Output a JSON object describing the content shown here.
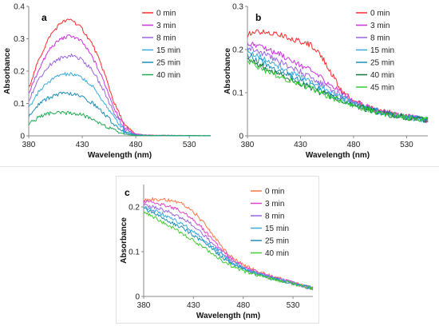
{
  "chart_data": [
    {
      "type": "line",
      "panel_label": "a",
      "xlabel": "Wavelength (nm)",
      "ylabel": "Absorbance",
      "xlim": [
        380,
        550
      ],
      "ylim": [
        0,
        0.4
      ],
      "xticks": [
        380,
        430,
        480,
        530
      ],
      "yticks": [
        0,
        0.1,
        0.2,
        0.3,
        0.4
      ],
      "yticklabels": [
        "0",
        "0.1",
        "0.2",
        "0.3",
        "0.4"
      ],
      "grid": false,
      "legend_position": "top-right",
      "series": [
        {
          "name": "0 min",
          "color": "#ff2a2a",
          "x": [
            380,
            390,
            400,
            410,
            420,
            430,
            440,
            450,
            460,
            470,
            480,
            490,
            500,
            550
          ],
          "y": [
            0.15,
            0.24,
            0.31,
            0.35,
            0.36,
            0.33,
            0.28,
            0.2,
            0.1,
            0.03,
            0.005,
            0.002,
            0.001,
            0
          ]
        },
        {
          "name": "3 min",
          "color": "#cc33dd",
          "x": [
            380,
            390,
            400,
            410,
            420,
            430,
            440,
            450,
            460,
            470,
            480,
            490,
            500,
            550
          ],
          "y": [
            0.13,
            0.21,
            0.27,
            0.3,
            0.31,
            0.29,
            0.24,
            0.17,
            0.085,
            0.025,
            0.005,
            0.002,
            0.001,
            0
          ]
        },
        {
          "name": "8 min",
          "color": "#9966dd",
          "x": [
            380,
            390,
            400,
            410,
            420,
            430,
            440,
            450,
            460,
            470,
            480,
            490,
            500,
            550
          ],
          "y": [
            0.11,
            0.18,
            0.22,
            0.24,
            0.25,
            0.235,
            0.2,
            0.14,
            0.07,
            0.02,
            0.004,
            0.002,
            0.001,
            0
          ]
        },
        {
          "name": "15 min",
          "color": "#3aaadd",
          "x": [
            380,
            390,
            400,
            410,
            420,
            430,
            440,
            450,
            460,
            470,
            480,
            490,
            500,
            550
          ],
          "y": [
            0.085,
            0.14,
            0.17,
            0.19,
            0.19,
            0.18,
            0.15,
            0.105,
            0.055,
            0.015,
            0.003,
            0.001,
            0.001,
            0
          ]
        },
        {
          "name": "25 min",
          "color": "#1f8fb8",
          "x": [
            380,
            390,
            400,
            410,
            420,
            430,
            440,
            450,
            460,
            470,
            480,
            490,
            500,
            550
          ],
          "y": [
            0.06,
            0.1,
            0.12,
            0.13,
            0.13,
            0.12,
            0.1,
            0.07,
            0.035,
            0.01,
            0.002,
            0.001,
            0.001,
            0
          ]
        },
        {
          "name": "40 min",
          "color": "#22aa55",
          "x": [
            380,
            390,
            400,
            410,
            420,
            430,
            440,
            450,
            460,
            470,
            480,
            490,
            500,
            550
          ],
          "y": [
            0.035,
            0.06,
            0.07,
            0.07,
            0.07,
            0.065,
            0.05,
            0.035,
            0.015,
            0.005,
            0.001,
            0.001,
            0.001,
            0
          ]
        }
      ]
    },
    {
      "type": "line",
      "panel_label": "b",
      "xlabel": "Wavelength (nm)",
      "ylabel": "Absorbance",
      "xlim": [
        380,
        550
      ],
      "ylim": [
        0,
        0.3
      ],
      "xticks": [
        380,
        430,
        480,
        530
      ],
      "yticks": [
        0,
        0.1,
        0.2,
        0.3
      ],
      "yticklabels": [
        "0",
        "0.1",
        "0.2",
        "0.3"
      ],
      "grid": false,
      "legend_position": "top-right",
      "series": [
        {
          "name": "0 min",
          "color": "#ff2a2a",
          "x": [
            380,
            390,
            400,
            410,
            420,
            430,
            440,
            450,
            460,
            470,
            480,
            490,
            500,
            510,
            520,
            530,
            540,
            550
          ],
          "y": [
            0.235,
            0.24,
            0.24,
            0.235,
            0.225,
            0.22,
            0.21,
            0.185,
            0.14,
            0.1,
            0.08,
            0.07,
            0.062,
            0.056,
            0.05,
            0.045,
            0.04,
            0.037
          ]
        },
        {
          "name": "3 min",
          "color": "#cc33dd",
          "x": [
            380,
            390,
            400,
            410,
            420,
            430,
            440,
            450,
            460,
            470,
            480,
            490,
            500,
            510,
            520,
            530,
            540,
            550
          ],
          "y": [
            0.215,
            0.21,
            0.2,
            0.19,
            0.178,
            0.165,
            0.15,
            0.133,
            0.115,
            0.098,
            0.082,
            0.07,
            0.062,
            0.055,
            0.05,
            0.045,
            0.04,
            0.037
          ]
        },
        {
          "name": "8 min",
          "color": "#9966dd",
          "x": [
            380,
            390,
            400,
            410,
            420,
            430,
            440,
            450,
            460,
            470,
            480,
            490,
            500,
            510,
            520,
            530,
            540,
            550
          ],
          "y": [
            0.205,
            0.195,
            0.185,
            0.172,
            0.16,
            0.148,
            0.135,
            0.12,
            0.105,
            0.09,
            0.078,
            0.068,
            0.06,
            0.054,
            0.049,
            0.044,
            0.04,
            0.037
          ]
        },
        {
          "name": "15 min",
          "color": "#3aaadd",
          "x": [
            380,
            390,
            400,
            410,
            420,
            430,
            440,
            450,
            460,
            470,
            480,
            490,
            500,
            510,
            520,
            530,
            540,
            550
          ],
          "y": [
            0.198,
            0.185,
            0.172,
            0.16,
            0.148,
            0.137,
            0.125,
            0.112,
            0.099,
            0.086,
            0.075,
            0.066,
            0.059,
            0.053,
            0.048,
            0.044,
            0.04,
            0.037
          ]
        },
        {
          "name": "25 min",
          "color": "#1f8fb8",
          "x": [
            380,
            390,
            400,
            410,
            420,
            430,
            440,
            450,
            460,
            470,
            480,
            490,
            500,
            510,
            520,
            530,
            540,
            550
          ],
          "y": [
            0.19,
            0.175,
            0.162,
            0.15,
            0.139,
            0.128,
            0.117,
            0.105,
            0.094,
            0.083,
            0.073,
            0.065,
            0.058,
            0.052,
            0.047,
            0.043,
            0.04,
            0.037
          ]
        },
        {
          "name": "40 min",
          "color": "#117744",
          "x": [
            380,
            390,
            400,
            410,
            420,
            430,
            440,
            450,
            460,
            470,
            480,
            490,
            500,
            510,
            520,
            530,
            540,
            550
          ],
          "y": [
            0.18,
            0.165,
            0.152,
            0.141,
            0.131,
            0.121,
            0.111,
            0.1,
            0.09,
            0.08,
            0.071,
            0.063,
            0.057,
            0.051,
            0.047,
            0.043,
            0.04,
            0.037
          ]
        },
        {
          "name": "45 min",
          "color": "#33cc33",
          "x": [
            380,
            390,
            400,
            410,
            420,
            430,
            440,
            450,
            460,
            470,
            480,
            490,
            500,
            510,
            520,
            530,
            540,
            550
          ],
          "y": [
            0.175,
            0.16,
            0.148,
            0.138,
            0.128,
            0.119,
            0.109,
            0.099,
            0.089,
            0.079,
            0.07,
            0.063,
            0.057,
            0.051,
            0.047,
            0.043,
            0.04,
            0.037
          ]
        }
      ]
    },
    {
      "type": "line",
      "panel_label": "c",
      "xlabel": "Wavelength (nm)",
      "ylabel": "Absorbance",
      "xlim": [
        380,
        550
      ],
      "ylim": [
        0,
        0.25
      ],
      "xticks": [
        380,
        430,
        480,
        530
      ],
      "yticks": [
        0,
        0.1,
        0.2
      ],
      "yticklabels": [
        "0",
        "0.1",
        "0.2"
      ],
      "grid": false,
      "legend_position": "top-right",
      "series": [
        {
          "name": "0 min",
          "color": "#ff7744",
          "x": [
            380,
            390,
            400,
            410,
            420,
            430,
            440,
            450,
            460,
            470,
            480,
            490,
            500,
            510,
            520,
            530,
            540,
            550
          ],
          "y": [
            0.215,
            0.218,
            0.217,
            0.212,
            0.205,
            0.19,
            0.165,
            0.135,
            0.105,
            0.085,
            0.07,
            0.06,
            0.052,
            0.045,
            0.038,
            0.031,
            0.024,
            0.018
          ]
        },
        {
          "name": "3 min",
          "color": "#dd44cc",
          "x": [
            380,
            390,
            400,
            410,
            420,
            430,
            440,
            450,
            460,
            470,
            480,
            490,
            500,
            510,
            520,
            530,
            540,
            550
          ],
          "y": [
            0.212,
            0.21,
            0.205,
            0.198,
            0.188,
            0.172,
            0.15,
            0.125,
            0.1,
            0.082,
            0.068,
            0.058,
            0.05,
            0.043,
            0.036,
            0.03,
            0.024,
            0.018
          ]
        },
        {
          "name": "8 min",
          "color": "#9966dd",
          "x": [
            380,
            390,
            400,
            410,
            420,
            430,
            440,
            450,
            460,
            470,
            480,
            490,
            500,
            510,
            520,
            530,
            540,
            550
          ],
          "y": [
            0.205,
            0.2,
            0.193,
            0.184,
            0.173,
            0.158,
            0.139,
            0.117,
            0.095,
            0.078,
            0.065,
            0.056,
            0.048,
            0.042,
            0.036,
            0.03,
            0.024,
            0.018
          ]
        },
        {
          "name": "15 min",
          "color": "#3aaadd",
          "x": [
            380,
            390,
            400,
            410,
            420,
            430,
            440,
            450,
            460,
            470,
            480,
            490,
            500,
            510,
            520,
            530,
            540,
            550
          ],
          "y": [
            0.2,
            0.192,
            0.183,
            0.172,
            0.16,
            0.146,
            0.129,
            0.11,
            0.09,
            0.075,
            0.063,
            0.054,
            0.047,
            0.041,
            0.035,
            0.029,
            0.023,
            0.018
          ]
        },
        {
          "name": "25 min",
          "color": "#1f8fb8",
          "x": [
            380,
            390,
            400,
            410,
            420,
            430,
            440,
            450,
            460,
            470,
            480,
            490,
            500,
            510,
            520,
            530,
            540,
            550
          ],
          "y": [
            0.197,
            0.186,
            0.175,
            0.163,
            0.151,
            0.137,
            0.121,
            0.104,
            0.086,
            0.072,
            0.061,
            0.053,
            0.046,
            0.04,
            0.034,
            0.029,
            0.023,
            0.018
          ]
        },
        {
          "name": "40 min",
          "color": "#44cc33",
          "x": [
            380,
            390,
            400,
            410,
            420,
            430,
            440,
            450,
            460,
            470,
            480,
            490,
            500,
            510,
            520,
            530,
            540,
            550
          ],
          "y": [
            0.19,
            0.178,
            0.165,
            0.152,
            0.139,
            0.125,
            0.11,
            0.094,
            0.079,
            0.066,
            0.057,
            0.05,
            0.044,
            0.038,
            0.033,
            0.028,
            0.023,
            0.018
          ]
        }
      ]
    }
  ]
}
